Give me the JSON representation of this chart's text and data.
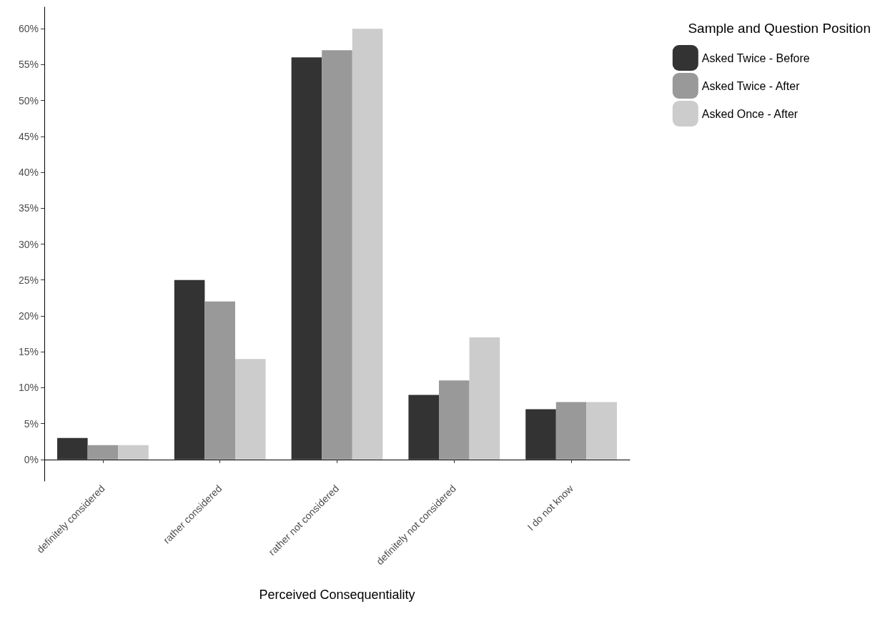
{
  "chart_data": {
    "type": "bar",
    "xlabel": "Perceived Consequentiality",
    "legend_title": "Sample and Question Position",
    "categories": [
      "definitely considered",
      "rather considered",
      "rather not considered",
      "definitely not considered",
      "I do not know"
    ],
    "series": [
      {
        "name": "Asked Twice - Before",
        "color": "#333333",
        "values": [
          3,
          25,
          56,
          9,
          7
        ]
      },
      {
        "name": "Asked Twice - After",
        "color": "#999999",
        "values": [
          2,
          22,
          57,
          11,
          8
        ]
      },
      {
        "name": "Asked Once - After",
        "color": "#cccccc",
        "values": [
          2,
          14,
          60,
          17,
          8
        ]
      }
    ],
    "ylim": [
      -3,
      63
    ],
    "yticks": [
      {
        "value": 0,
        "label": "0%"
      },
      {
        "value": 5,
        "label": "5%"
      },
      {
        "value": 10,
        "label": "10%"
      },
      {
        "value": 15,
        "label": "15%"
      },
      {
        "value": 20,
        "label": "20%"
      },
      {
        "value": 25,
        "label": "25%"
      },
      {
        "value": 30,
        "label": "30%"
      },
      {
        "value": 35,
        "label": "35%"
      },
      {
        "value": 40,
        "label": "40%"
      },
      {
        "value": 45,
        "label": "45%"
      },
      {
        "value": 50,
        "label": "50%"
      },
      {
        "value": 55,
        "label": "55%"
      },
      {
        "value": 60,
        "label": "60%"
      }
    ],
    "grid": false,
    "legend": "top right"
  }
}
